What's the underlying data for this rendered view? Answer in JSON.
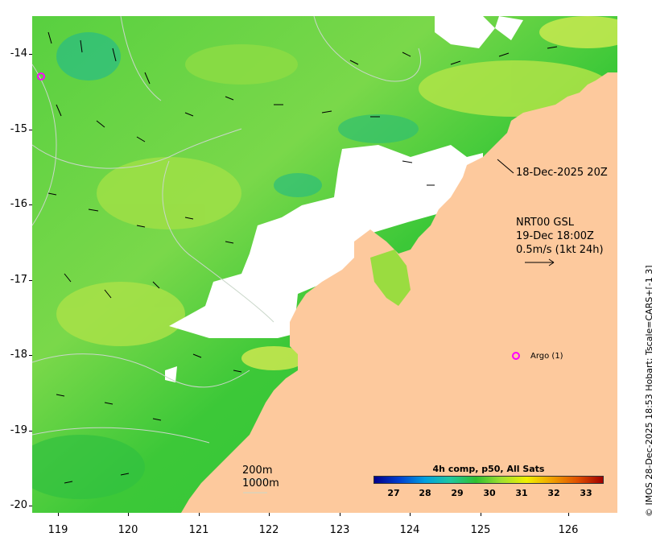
{
  "map": {
    "y_ticks": [
      "-14",
      "-15",
      "-16",
      "-17",
      "-18",
      "-19",
      "-20"
    ],
    "x_ticks": [
      "119",
      "120",
      "121",
      "122",
      "123",
      "124",
      "125",
      "126"
    ],
    "lat_range": [
      -20.1,
      -13.5
    ],
    "lon_range": [
      118.65,
      126.7
    ],
    "colors": {
      "land": "#fdc99d",
      "sea_base": "#3cc838",
      "no_data": "#ffffff",
      "contour": "#c9d6c9",
      "argo_marker": "#ff00ff"
    }
  },
  "labels": {
    "map_date": "18-Dec-2025 20Z",
    "current_line1": "NRT00 GSL",
    "current_line2": "19-Dec 18:00Z",
    "current_line3": "0.5m/s (1kt 24h)",
    "argo": "Argo (1)",
    "isobath_200": "200m",
    "isobath_1000": "1000m",
    "credit": "© IMOS 28-Dec-2025 18:53 Hobart; Tscale=CARS+[-1 3]"
  },
  "colorbar": {
    "title": "4h comp, p50, All Sats",
    "ticks": [
      "27",
      "28",
      "29",
      "30",
      "31",
      "32",
      "33"
    ],
    "colors": [
      "#00008c",
      "#0040d0",
      "#00a0e0",
      "#20c8a0",
      "#30c030",
      "#a0e030",
      "#f0f000",
      "#f0a000",
      "#e05000",
      "#a00000"
    ]
  }
}
